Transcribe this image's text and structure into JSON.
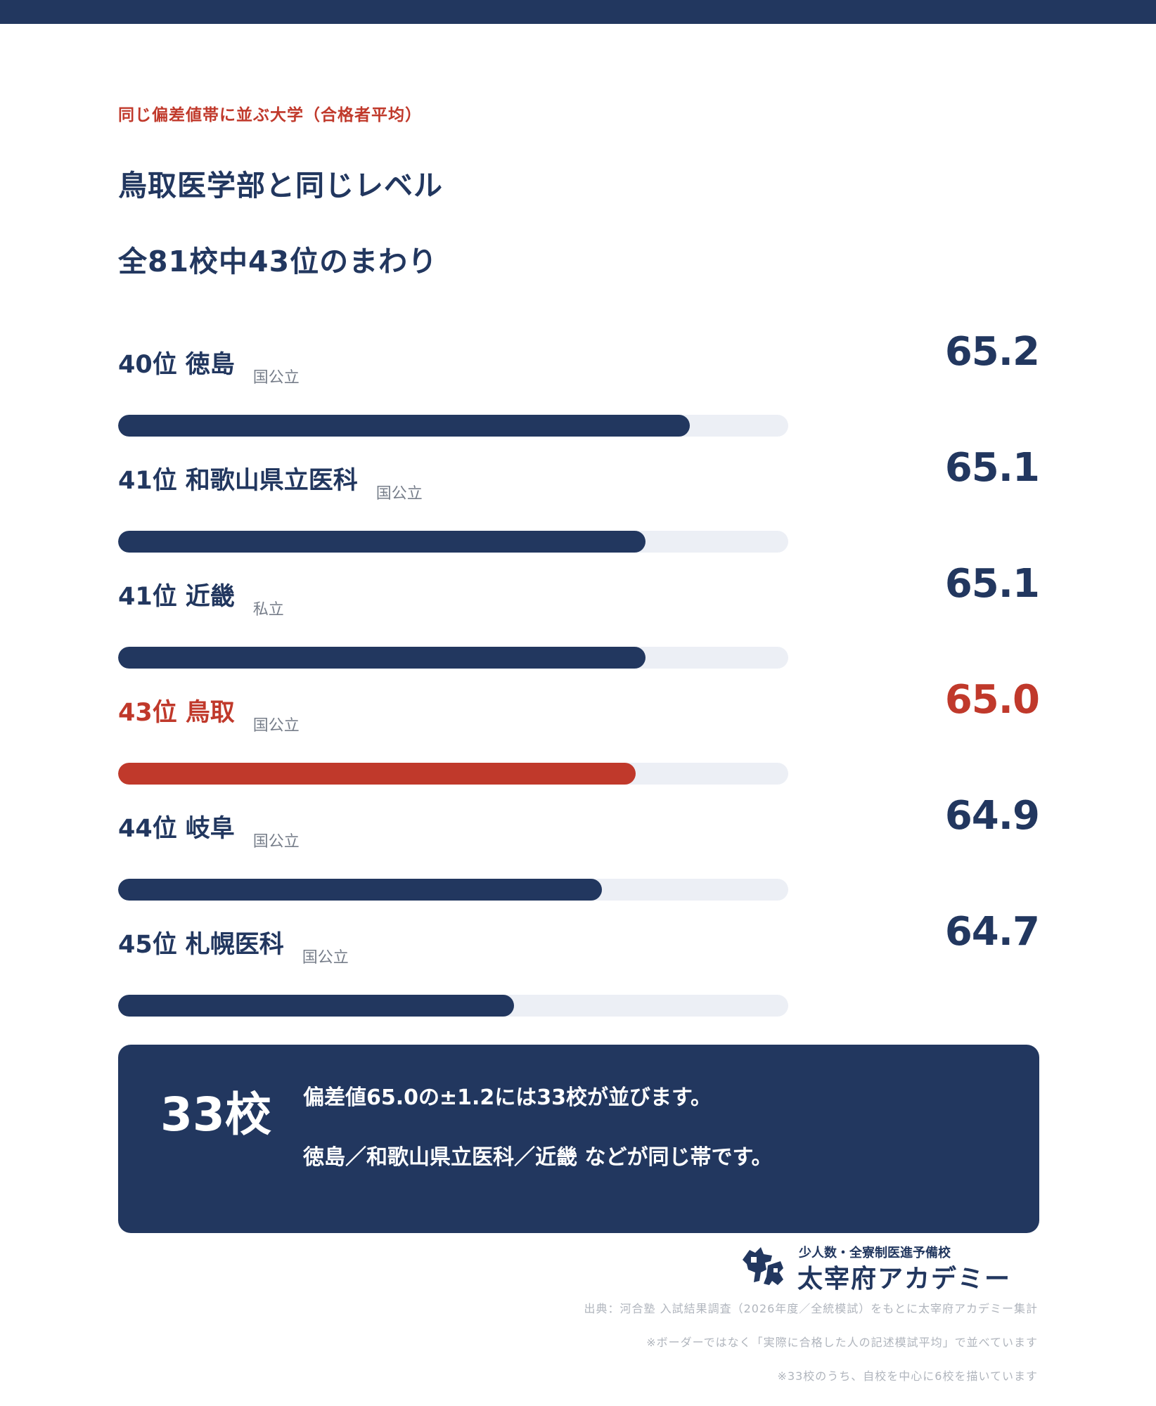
{
  "header": {
    "eyebrow": "同じ偏差値帯に並ぶ大学（合格者平均）",
    "title_line1": "鳥取医学部と同じレベル",
    "title_line2": "全81校中43位のまわり"
  },
  "colors": {
    "navy": "#22375f",
    "red": "#c0392b",
    "track": "#eceff5"
  },
  "chart_data": {
    "type": "bar",
    "orientation": "horizontal",
    "highlight_index": 3,
    "categories": [
      "40位 徳島",
      "41位 和歌山県立医科",
      "41位 近畿",
      "43位 鳥取",
      "44位 岐阜",
      "45位 札幌医科"
    ],
    "rows": [
      {
        "rank": "40位",
        "name": "徳島",
        "type": "国公立",
        "value": 65.2,
        "value_label": "65.2",
        "fill": 0.853
      },
      {
        "rank": "41位",
        "name": "和歌山県立医科",
        "type": "国公立",
        "value": 65.1,
        "value_label": "65.1",
        "fill": 0.787
      },
      {
        "rank": "41位",
        "name": "近畿",
        "type": "私立",
        "value": 65.1,
        "value_label": "65.1",
        "fill": 0.787
      },
      {
        "rank": "43位",
        "name": "鳥取",
        "type": "国公立",
        "value": 65.0,
        "value_label": "65.0",
        "fill": 0.772
      },
      {
        "rank": "44位",
        "name": "岐阜",
        "type": "国公立",
        "value": 64.9,
        "value_label": "64.9",
        "fill": 0.722
      },
      {
        "rank": "45位",
        "name": "札幌医科",
        "type": "国公立",
        "value": 64.7,
        "value_label": "64.7",
        "fill": 0.591
      }
    ]
  },
  "summary": {
    "count": "33校",
    "line1": "偏差値65.0の±1.2には33校が並びます。",
    "line2": "徳島／和歌山県立医科／近畿 などが同じ帯です。"
  },
  "logo": {
    "tagline": "少人数・全寮制医進予備校",
    "name": "太宰府アカデミー",
    "icon": "horse-logo-icon"
  },
  "notes": [
    "出典：河合塾 入試結果調査（2026年度／全統模試）をもとに太宰府アカデミー集計",
    "※ボーダーではなく「実際に合格した人の記述模試平均」で並べています",
    "※33校のうち、自校を中心に6校を描いています"
  ]
}
